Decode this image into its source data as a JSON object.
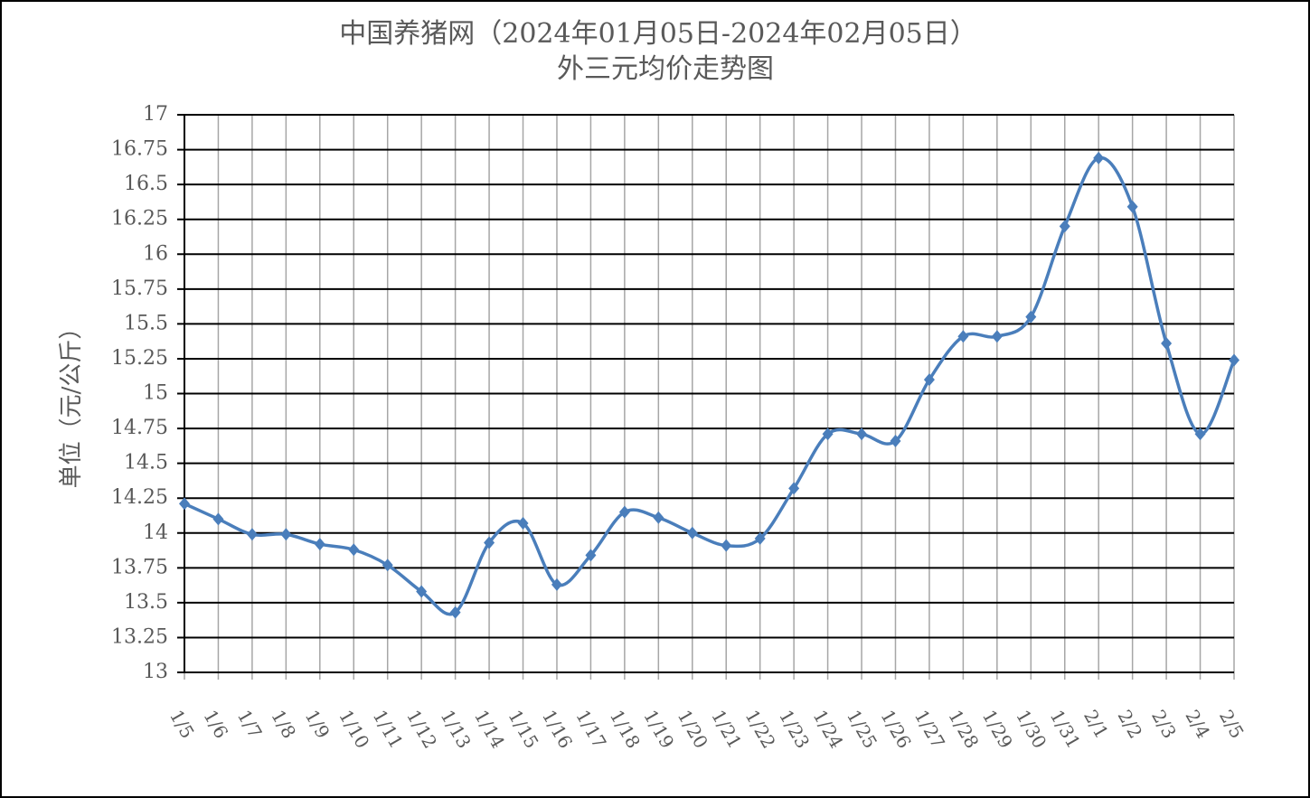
{
  "chart_data": {
    "type": "line",
    "title": "中国养猪网（2024年01月05日-2024年02月05日）",
    "subtitle": "外三元均价走势图",
    "y_label": "单位（元/公斤）",
    "categories": [
      "1/5",
      "1/6",
      "1/7",
      "1/8",
      "1/9",
      "1/10",
      "1/11",
      "1/12",
      "1/13",
      "1/14",
      "1/15",
      "1/16",
      "1/17",
      "1/18",
      "1/19",
      "1/20",
      "1/21",
      "1/22",
      "1/23",
      "1/24",
      "1/25",
      "1/26",
      "1/27",
      "1/28",
      "1/29",
      "1/30",
      "1/31",
      "2/1",
      "2/2",
      "2/3",
      "2/4",
      "2/5"
    ],
    "values": [
      14.21,
      14.1,
      13.99,
      13.99,
      13.92,
      13.88,
      13.77,
      13.58,
      13.43,
      13.93,
      14.07,
      13.63,
      13.84,
      14.15,
      14.11,
      14.0,
      13.91,
      13.96,
      14.32,
      14.71,
      14.71,
      14.66,
      15.1,
      15.41,
      15.41,
      15.55,
      16.2,
      16.69,
      16.34,
      15.36,
      14.71,
      15.24
    ],
    "color": "#4a7ebb",
    "ylim": [
      13,
      17
    ],
    "yticks": [
      13,
      13.25,
      13.5,
      13.75,
      14,
      14.25,
      14.5,
      14.75,
      15,
      15.25,
      15.5,
      15.75,
      16,
      16.25,
      16.5,
      16.75,
      17
    ],
    "grid": true,
    "smooth": true
  }
}
